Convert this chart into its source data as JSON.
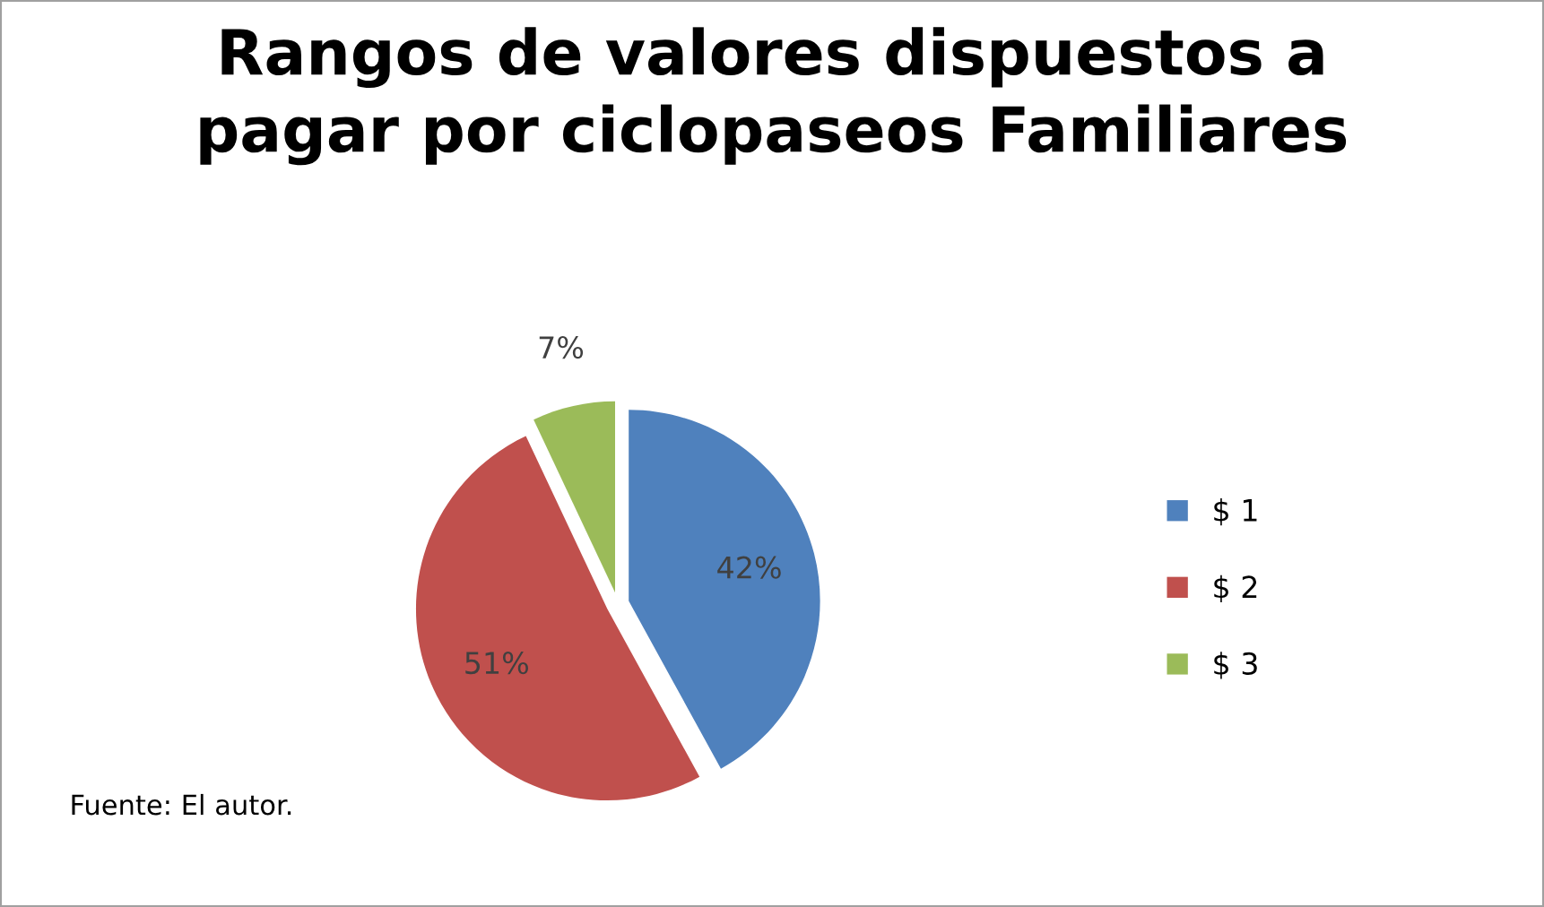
{
  "chart_data": {
    "type": "pie",
    "title": "Rangos de valores dispuestos a\npagar por ciclopaseos Familiares",
    "categories": [
      "$ 1",
      "$ 2",
      "$ 3"
    ],
    "values": [
      42,
      51,
      7
    ],
    "colors": [
      "#4f81bd",
      "#c0504d",
      "#9bbb59"
    ],
    "value_labels": [
      "42%",
      "51%",
      "7%"
    ],
    "legend": "right",
    "annotations": [
      "Fuente: El autor."
    ]
  }
}
